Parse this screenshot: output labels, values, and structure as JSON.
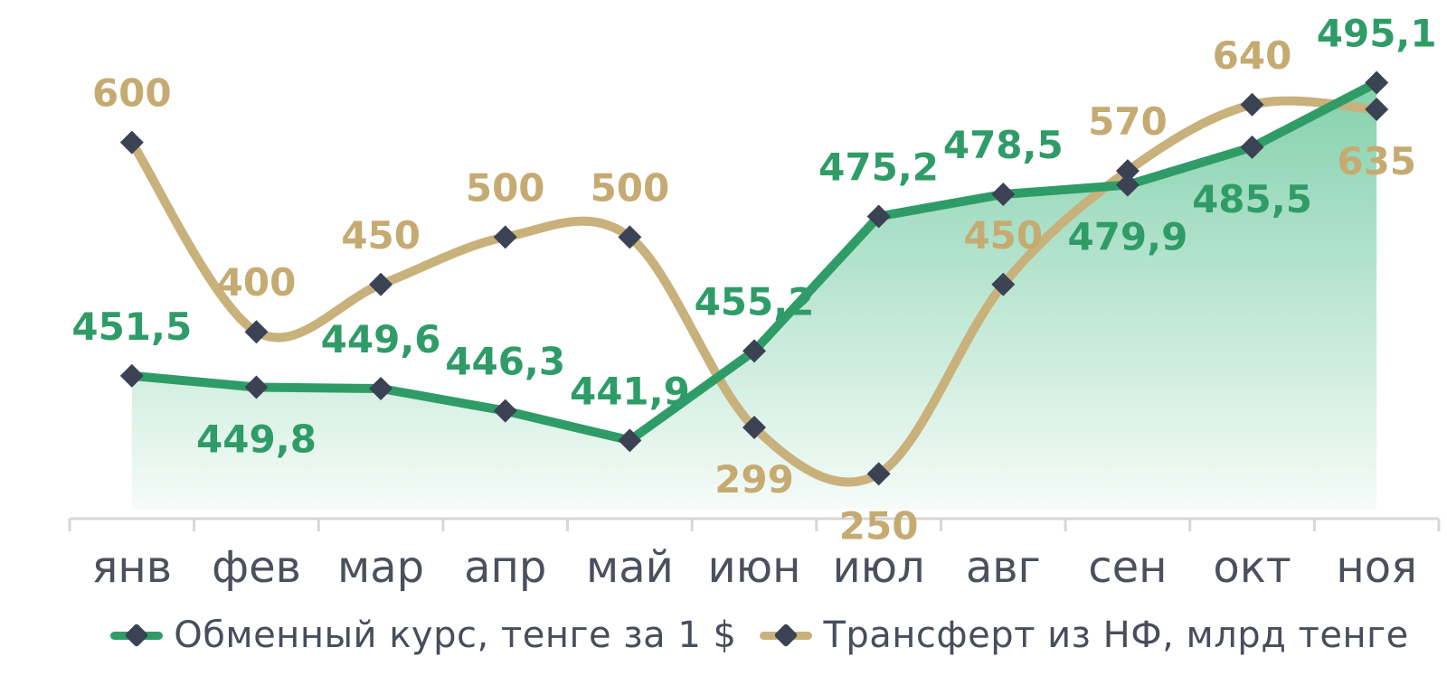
{
  "chart_data": {
    "type": "line",
    "categories": [
      "янв",
      "фев",
      "мар",
      "апр",
      "май",
      "июн",
      "июл",
      "авг",
      "сен",
      "окт",
      "ноя"
    ],
    "series": [
      {
        "name": "Обменный курс, тенге за 1 $",
        "values": [
          451.5,
          449.8,
          449.6,
          446.3,
          441.9,
          455.2,
          475.2,
          478.5,
          479.9,
          485.5,
          495.1
        ],
        "labels": [
          "451,5",
          "449,8",
          "449,6",
          "446,3",
          "441,9",
          "455,2",
          "475,2",
          "478,5",
          "479,9",
          "485,5",
          "495,1"
        ],
        "label_side": [
          "above",
          "below",
          "above",
          "above",
          "above",
          "above",
          "above",
          "above",
          "below",
          "below",
          "above"
        ],
        "color": "#2f9c68",
        "label_color": "#2f9c68",
        "smooth": false,
        "area": true,
        "ylim": [
          432,
          500
        ]
      },
      {
        "name": "Трансферт из НФ, млрд тенге",
        "values": [
          600,
          400,
          450,
          500,
          500,
          299,
          250,
          450,
          570,
          640,
          635
        ],
        "labels": [
          "600",
          "400",
          "450",
          "500",
          "500",
          "299",
          "250",
          "450",
          "570",
          "640",
          "635"
        ],
        "label_side": [
          "above",
          "above",
          "above",
          "above",
          "above",
          "below",
          "below",
          "above",
          "above",
          "above",
          "below"
        ],
        "color": "#c9b17c",
        "label_color": "#c5ab72",
        "smooth": true,
        "area": false,
        "ylim": [
          215,
          698
        ]
      }
    ],
    "marker_shape": "diamond",
    "marker_color": "#3b4254",
    "area_fill_color": "#35b478",
    "axis_line_color": "#d7d7d7",
    "x_label_color": "#4b505e",
    "legend_text_color": "#474d5b",
    "background_color": "#ffffff",
    "grid": false,
    "legend_position": "bottom",
    "y_axis_visible": false
  }
}
